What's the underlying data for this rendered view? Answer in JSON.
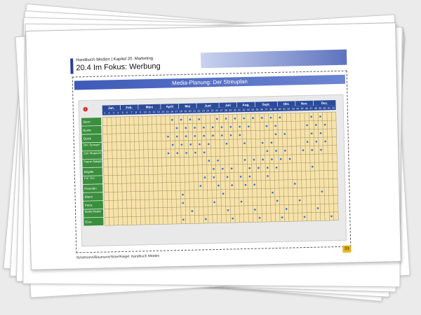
{
  "header": {
    "book_line": "Handbuch Medien | Kapitel 20. Marketing",
    "section_title": "20.4  Im Fokus: Werbung"
  },
  "banner_title": "Media-Planung: Der Streuplan",
  "info_icon": "exclamation-icon",
  "footer_text": "Schelmann/Baumann/Stoer/Kegel: Handbuch Medien",
  "page_number": "33",
  "colors": {
    "row_label": "#3a8f3d",
    "header_bar": "#2b4a9a",
    "cell": "#f7e3aa",
    "dot": "#3d78c8",
    "banner": "#4a66c2"
  },
  "months": [
    {
      "label": "Jan.",
      "weeks": 4
    },
    {
      "label": "Feb.",
      "weeks": 4
    },
    {
      "label": "März",
      "weeks": 5
    },
    {
      "label": "April",
      "weeks": 4
    },
    {
      "label": "Mai",
      "weeks": 4
    },
    {
      "label": "Juni",
      "weeks": 5
    },
    {
      "label": "Juli",
      "weeks": 4
    },
    {
      "label": "Aug.",
      "weeks": 4
    },
    {
      "label": "Sept.",
      "weeks": 5
    },
    {
      "label": "Okt.",
      "weeks": 4
    },
    {
      "label": "Nov.",
      "weeks": 4
    },
    {
      "label": "Dez.",
      "weeks": 5
    }
  ],
  "weeks": [
    "1",
    "2",
    "3",
    "4",
    "5",
    "6",
    "7",
    "8",
    "9",
    "10",
    "11",
    "12",
    "13",
    "14",
    "15",
    "16",
    "17",
    "18",
    "19",
    "20",
    "21",
    "22",
    "23",
    "24",
    "25",
    "26",
    "27",
    "28",
    "29",
    "30",
    "31",
    "32",
    "33",
    "34",
    "35",
    "36",
    "37",
    "38",
    "39",
    "40",
    "41",
    "42",
    "43",
    "44",
    "45",
    "46",
    "47",
    "48",
    "49",
    "50",
    "51",
    "52"
  ],
  "media": [
    {
      "name": "Stern",
      "weeks": [
        16,
        18,
        20,
        22,
        26,
        28,
        30,
        32,
        34,
        36,
        38,
        40,
        47,
        49
      ]
    },
    {
      "name": "Bunte",
      "weeks": [
        17,
        19,
        21,
        23,
        25,
        27,
        29,
        31,
        33,
        37,
        39,
        46,
        48,
        50
      ]
    },
    {
      "name": "Quick",
      "weeks": [
        15,
        17,
        19,
        21,
        23,
        25,
        27,
        29,
        31,
        39,
        41,
        47,
        49
      ]
    },
    {
      "name": "Der Spiegel",
      "weeks": [
        16,
        18,
        20,
        22,
        24,
        28,
        32,
        36,
        38,
        46,
        48,
        50
      ]
    },
    {
      "name": "Zeit Magazin",
      "weeks": [
        15,
        17,
        19,
        21,
        23,
        37,
        39,
        41,
        45,
        47,
        49
      ]
    },
    {
      "name": "Frau im Spiegel",
      "weeks": [
        24,
        26,
        32,
        34,
        36,
        38,
        40,
        42
      ]
    },
    {
      "name": "Brigitte",
      "weeks": [
        25,
        27,
        29,
        33,
        35,
        37,
        39,
        47
      ]
    },
    {
      "name": "Für Sie",
      "weeks": [
        23,
        25,
        28,
        31,
        33,
        37
      ]
    },
    {
      "name": "Freundin",
      "weeks": [
        22,
        26,
        29,
        32,
        34,
        43
      ]
    },
    {
      "name": "Eltern",
      "weeks": [
        18,
        27,
        38,
        49
      ]
    },
    {
      "name": "Petra",
      "weeks": [
        18,
        25,
        31,
        39,
        44
      ]
    },
    {
      "name": "Burda Moden",
      "weeks": [
        20,
        28,
        34,
        41,
        48
      ]
    },
    {
      "name": "Euro",
      "weeks": [
        18,
        23,
        29,
        35,
        40,
        45,
        51
      ]
    }
  ]
}
